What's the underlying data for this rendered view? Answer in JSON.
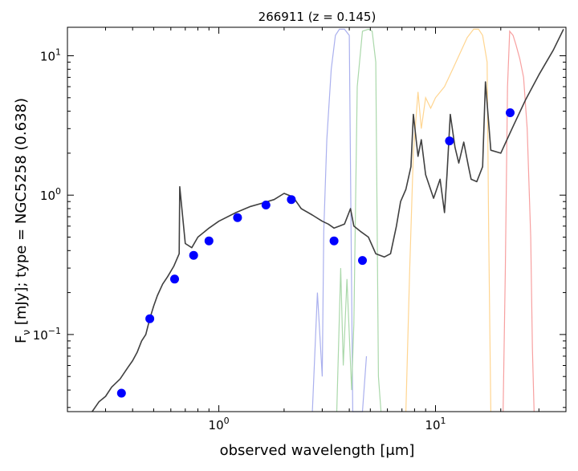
{
  "chart_data": {
    "type": "scatter",
    "title": "266911 (z = 0.145)",
    "xlabel": "observed wavelength [μm]",
    "ylabel": "Fν [mJy];  type = NGC5258 (0.638)",
    "ylabel_main": "F",
    "ylabel_sub": "ν",
    "ylabel_rest": " [mJy];  type = NGC5258 (0.638)",
    "x_scale": "log",
    "y_scale": "log",
    "xlim": [
      0.2,
      40
    ],
    "ylim": [
      0.028,
      16
    ],
    "grid": false,
    "x_ticks": [
      {
        "value": 1,
        "base": "10",
        "exp": "0"
      },
      {
        "value": 10,
        "base": "10",
        "exp": "1"
      }
    ],
    "y_ticks": [
      {
        "value": 0.1,
        "base": "10",
        "exp": "−1"
      },
      {
        "value": 1,
        "base": "10",
        "exp": "0"
      },
      {
        "value": 10,
        "base": "10",
        "exp": "1"
      }
    ],
    "photometry_points": {
      "color": "#0000ff",
      "x": [
        0.355,
        0.48,
        0.625,
        0.765,
        0.9,
        1.22,
        1.65,
        2.16,
        3.4,
        4.6,
        11.6,
        22.1
      ],
      "y": [
        0.038,
        0.13,
        0.25,
        0.37,
        0.47,
        0.69,
        0.85,
        0.93,
        0.47,
        0.34,
        2.45,
        3.9
      ]
    },
    "template_sed": {
      "color": "#404040",
      "x": [
        0.26,
        0.28,
        0.3,
        0.32,
        0.35,
        0.38,
        0.4,
        0.42,
        0.44,
        0.46,
        0.48,
        0.5,
        0.52,
        0.55,
        0.58,
        0.62,
        0.656,
        0.66,
        0.7,
        0.75,
        0.8,
        0.9,
        1.0,
        1.2,
        1.4,
        1.6,
        1.8,
        2.0,
        2.2,
        2.4,
        2.7,
        3.0,
        3.2,
        3.3,
        3.4,
        3.6,
        3.8,
        4.05,
        4.2,
        4.5,
        4.9,
        5.3,
        5.8,
        6.2,
        6.6,
        6.9,
        7.3,
        7.7,
        7.9,
        8.3,
        8.6,
        9.0,
        9.8,
        10.5,
        11.0,
        11.3,
        11.7,
        12.3,
        12.8,
        13.5,
        14.2,
        14.6,
        15.5,
        16.5,
        17.0,
        18.0,
        20.0,
        23.0,
        26.0,
        30.0,
        35.0,
        39.0
      ],
      "y": [
        0.028,
        0.033,
        0.036,
        0.042,
        0.048,
        0.058,
        0.065,
        0.075,
        0.09,
        0.1,
        0.13,
        0.16,
        0.19,
        0.23,
        0.26,
        0.31,
        0.38,
        1.15,
        0.45,
        0.42,
        0.5,
        0.58,
        0.65,
        0.75,
        0.83,
        0.88,
        0.93,
        1.03,
        0.97,
        0.8,
        0.72,
        0.65,
        0.62,
        0.6,
        0.58,
        0.6,
        0.62,
        0.8,
        0.6,
        0.55,
        0.5,
        0.38,
        0.36,
        0.38,
        0.6,
        0.9,
        1.1,
        1.6,
        3.8,
        1.9,
        2.5,
        1.4,
        0.95,
        1.3,
        0.75,
        1.4,
        3.8,
        2.2,
        1.7,
        2.4,
        1.6,
        1.3,
        1.25,
        1.6,
        6.5,
        2.1,
        2.0,
        3.2,
        4.8,
        7.3,
        11.0,
        15.5
      ]
    },
    "filter_curves": [
      {
        "color": "#aab0ee",
        "x": [
          2.7,
          2.85,
          3.0,
          3.05,
          3.15,
          3.3,
          3.45,
          3.6,
          3.8,
          4.0,
          4.08,
          4.15,
          4.6,
          4.8
        ],
        "y": [
          0.028,
          0.2,
          0.05,
          0.55,
          2.5,
          8.0,
          14.0,
          15.5,
          15.5,
          14.0,
          0.5,
          0.028,
          0.028,
          0.07
        ]
      },
      {
        "color": "#aad8aa",
        "x": [
          3.5,
          3.65,
          3.75,
          3.9,
          4.1,
          4.2,
          4.35,
          4.6,
          4.9,
          5.1,
          5.3,
          5.45,
          5.6
        ],
        "y": [
          0.028,
          0.3,
          0.06,
          0.25,
          0.04,
          0.12,
          6.0,
          15.0,
          15.5,
          15.0,
          9.0,
          0.05,
          0.028
        ]
      },
      {
        "color": "#ffd590",
        "x": [
          7.3,
          7.6,
          7.9,
          8.3,
          8.6,
          9.0,
          9.5,
          10.0,
          11.0,
          12.0,
          13.0,
          14.0,
          15.0,
          15.8,
          16.5,
          17.3,
          17.6,
          18.0
        ],
        "y": [
          0.028,
          0.3,
          2.0,
          5.5,
          3.0,
          5.0,
          4.2,
          5.0,
          6.0,
          8.0,
          10.5,
          13.5,
          15.5,
          15.5,
          14.0,
          9.0,
          0.5,
          0.028
        ]
      },
      {
        "color": "#f7a0a0",
        "x": [
          20.5,
          21.0,
          21.5,
          22.0,
          22.8,
          23.5,
          24.5,
          25.5,
          26.5,
          27.5,
          28.0,
          28.5
        ],
        "y": [
          0.028,
          0.3,
          6.0,
          15.0,
          14.0,
          12.0,
          9.5,
          7.0,
          3.0,
          0.5,
          0.08,
          0.028
        ]
      }
    ]
  }
}
